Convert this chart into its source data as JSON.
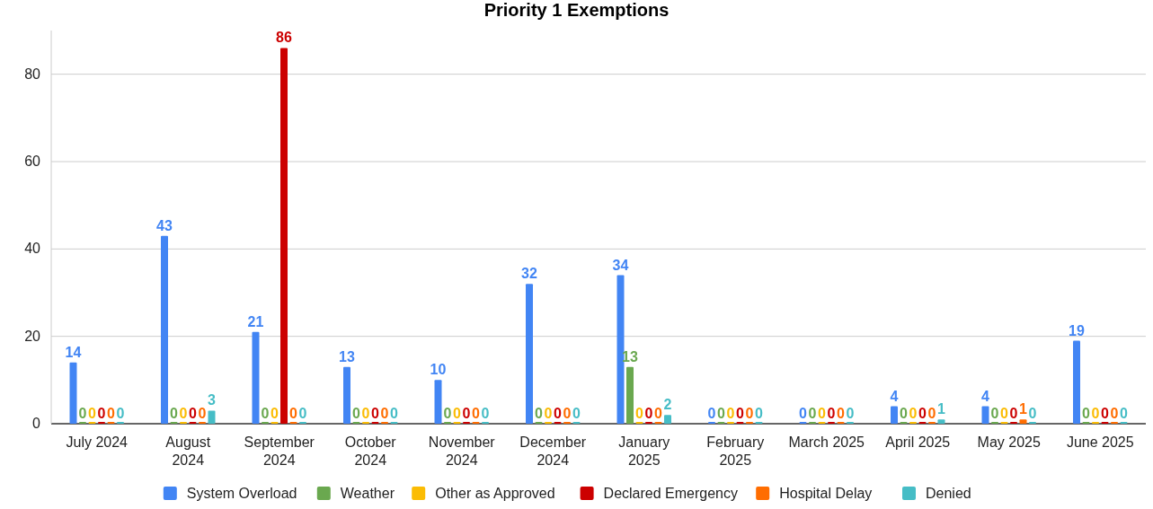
{
  "chart_data": {
    "type": "bar",
    "title": "Priority 1 Exemptions",
    "categories": [
      "July 2024",
      "August 2024",
      "September 2024",
      "October 2024",
      "November 2024",
      "December 2024",
      "January 2025",
      "February 2025",
      "March 2025",
      "April 2025",
      "May 2025",
      "June 2025"
    ],
    "series": [
      {
        "name": "System Overload",
        "color": "#4285f4",
        "values": [
          14,
          43,
          21,
          13,
          10,
          32,
          34,
          0,
          0,
          4,
          4,
          19
        ]
      },
      {
        "name": "Weather",
        "color": "#6aa84f",
        "values": [
          0,
          0,
          0,
          0,
          0,
          0,
          13,
          0,
          0,
          0,
          0,
          0
        ]
      },
      {
        "name": "Other as Approved",
        "color": "#fbbc04",
        "values": [
          0,
          0,
          0,
          0,
          0,
          0,
          0,
          0,
          0,
          0,
          0,
          0
        ]
      },
      {
        "name": "Declared Emergency",
        "color": "#cc0000",
        "values": [
          0,
          0,
          86,
          0,
          0,
          0,
          0,
          0,
          0,
          0,
          0,
          0
        ]
      },
      {
        "name": "Hospital Delay",
        "color": "#ff6d01",
        "values": [
          0,
          0,
          0,
          0,
          0,
          0,
          0,
          0,
          0,
          0,
          1,
          0
        ]
      },
      {
        "name": "Denied",
        "color": "#46bdc6",
        "values": [
          0,
          3,
          0,
          0,
          0,
          0,
          2,
          0,
          0,
          1,
          0,
          0
        ]
      }
    ],
    "ylim": [
      0,
      90
    ],
    "yticks": [
      0,
      20,
      40,
      60,
      80
    ],
    "grid": "y",
    "legend": "bottom",
    "data_labels": true
  }
}
